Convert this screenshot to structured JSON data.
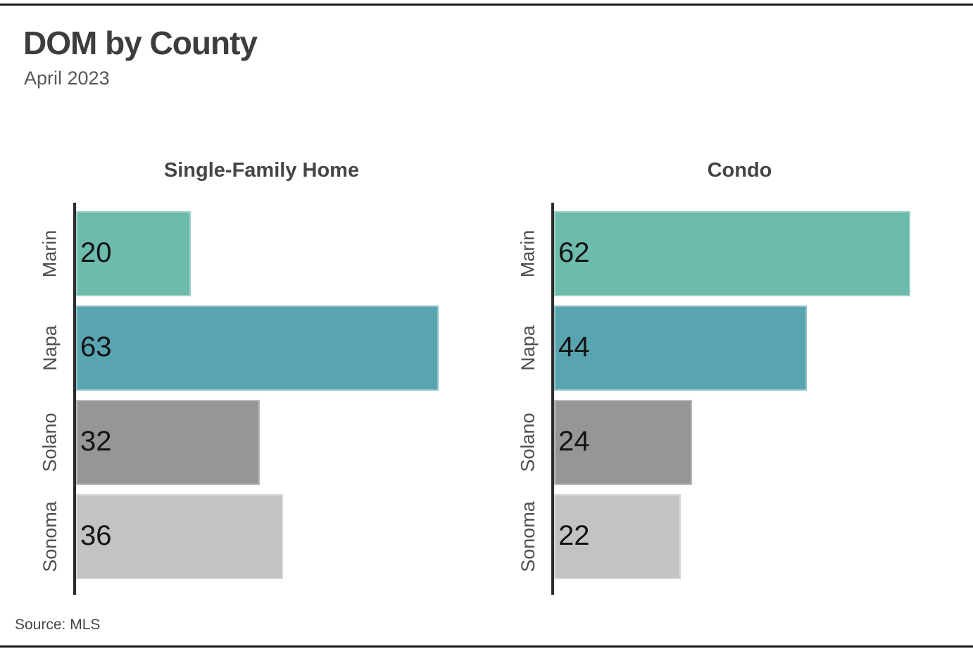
{
  "header": {
    "title": "DOM by County",
    "subtitle": "April 2023"
  },
  "footer": {
    "source": "Source: MLS"
  },
  "colors": {
    "rule": "#1a1a1a",
    "axis_spine": "#2b2b2b",
    "title_text": "#3d3d3d",
    "subtitle_text": "#575757",
    "value_text": "#141414",
    "marin_bar": "#6CBBAB",
    "napa_bar": "#58A4B0",
    "solano_bar": "#969696",
    "sonoma_bar": "#C3C3C3"
  },
  "chart_data": [
    {
      "type": "bar",
      "orientation": "horizontal",
      "title": "Single-Family Home",
      "categories": [
        "Marin",
        "Napa",
        "Solano",
        "Sonoma"
      ],
      "values": [
        20,
        63,
        32,
        36
      ],
      "xlim": [
        0,
        65
      ],
      "bar_colors": [
        "#6CBBAB",
        "#58A4B0",
        "#969696",
        "#C3C3C3"
      ],
      "value_labels": "inside-left",
      "category_labels": "rotated-90",
      "grid": false,
      "legend": false
    },
    {
      "type": "bar",
      "orientation": "horizontal",
      "title": "Condo",
      "categories": [
        "Marin",
        "Napa",
        "Solano",
        "Sonoma"
      ],
      "values": [
        62,
        44,
        24,
        22
      ],
      "xlim": [
        0,
        65
      ],
      "bar_colors": [
        "#6CBBAB",
        "#58A4B0",
        "#969696",
        "#C3C3C3"
      ],
      "value_labels": "inside-left",
      "category_labels": "rotated-90",
      "grid": false,
      "legend": false
    }
  ]
}
